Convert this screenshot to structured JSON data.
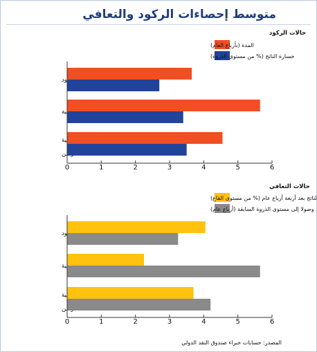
{
  "title": "متوسط إحصاءات الركود والتعافي",
  "source": "المصدر: حسابات خبراء صندوق النقد الدولي",
  "chart_data": [
    {
      "type": "bar",
      "orientation": "horizontal",
      "section_title": "حالات الركود",
      "categories": [
        "كل حالات الركود",
        "الأزمات المالية",
        "حالات الركود عالية التزامن"
      ],
      "series": [
        {
          "name": "المدة (بأرباع العام)",
          "color": "#f04e23",
          "values": [
            3.65,
            5.65,
            4.55
          ]
        },
        {
          "name": "خسارة الناتج (% من مستوى الذروة)",
          "color": "#21449a",
          "values": [
            2.7,
            3.4,
            3.5
          ]
        }
      ],
      "xlim": [
        0,
        6
      ],
      "xticks": [
        0,
        1,
        2,
        3,
        4,
        5,
        6
      ],
      "grid": false,
      "legend_position": "top-right"
    },
    {
      "type": "bar",
      "orientation": "horizontal",
      "section_title": "حالات التعافي",
      "categories": [
        "كل حالات الركود",
        "الأزمات المالية",
        "حالات الركود عالية التزامن"
      ],
      "series": [
        {
          "name": "مكاسب الناتج بعد أربعة أرباع عام (% من مستوى القاع)",
          "color": "#ffc20e",
          "values": [
            4.05,
            2.25,
            3.7
          ]
        },
        {
          "name": "الزمن حتى التعافي وصولا إلى مستوى الذروة السابقة (أرباع عام)",
          "color": "#8a8a8a",
          "values": [
            3.25,
            5.65,
            4.2
          ]
        }
      ],
      "xlim": [
        0,
        6
      ],
      "xticks": [
        0,
        1,
        2,
        3,
        4,
        5,
        6
      ],
      "grid": false,
      "legend_position": "top-right"
    }
  ]
}
